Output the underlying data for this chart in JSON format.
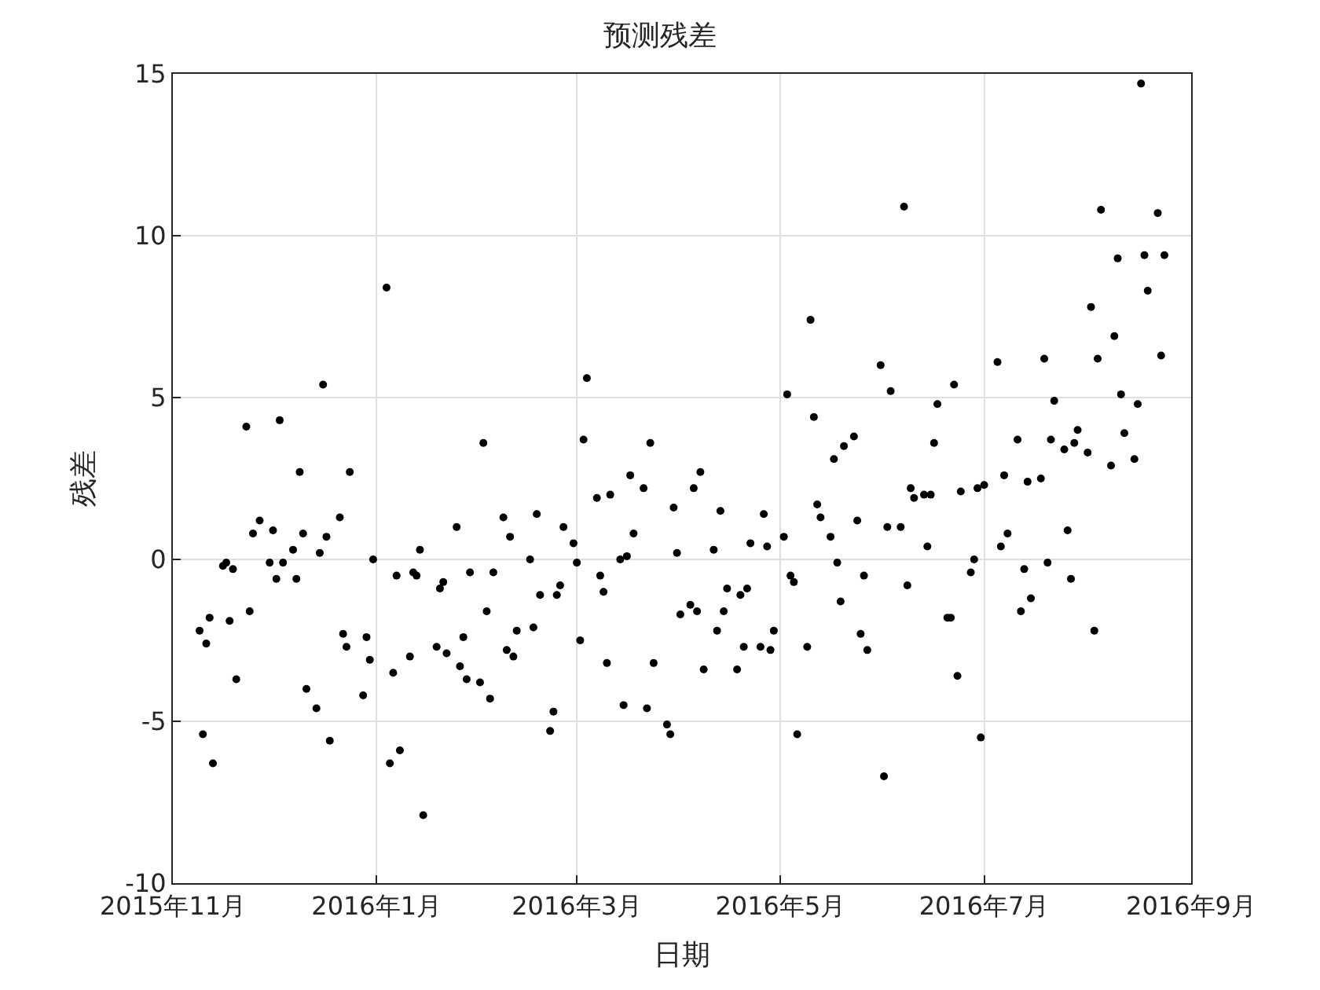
{
  "chart_data": {
    "type": "scatter",
    "title": "预测残差",
    "xlabel": "日期",
    "ylabel": "残差",
    "x": [
      "2015-11-09",
      "2015-11-10",
      "2015-11-11",
      "2015-11-12",
      "2015-11-13",
      "2015-11-16",
      "2015-11-17",
      "2015-11-18",
      "2015-11-19",
      "2015-11-20",
      "2015-11-23",
      "2015-11-24",
      "2015-11-25",
      "2015-11-27",
      "2015-11-30",
      "2015-12-01",
      "2015-12-02",
      "2015-12-03",
      "2015-12-04",
      "2015-12-07",
      "2015-12-08",
      "2015-12-09",
      "2015-12-10",
      "2015-12-11",
      "2015-12-14",
      "2015-12-15",
      "2015-12-16",
      "2015-12-17",
      "2015-12-18",
      "2015-12-21",
      "2015-12-22",
      "2015-12-23",
      "2015-12-24",
      "2015-12-28",
      "2015-12-29",
      "2015-12-30",
      "2015-12-31",
      "2016-01-04",
      "2016-01-05",
      "2016-01-06",
      "2016-01-07",
      "2016-01-08",
      "2016-01-11",
      "2016-01-12",
      "2016-01-13",
      "2016-01-14",
      "2016-01-15",
      "2016-01-19",
      "2016-01-20",
      "2016-01-21",
      "2016-01-22",
      "2016-01-25",
      "2016-01-26",
      "2016-01-27",
      "2016-01-28",
      "2016-01-29",
      "2016-02-01",
      "2016-02-02",
      "2016-02-03",
      "2016-02-04",
      "2016-02-05",
      "2016-02-08",
      "2016-02-09",
      "2016-02-10",
      "2016-02-11",
      "2016-02-12",
      "2016-02-16",
      "2016-02-17",
      "2016-02-18",
      "2016-02-19",
      "2016-02-22",
      "2016-02-23",
      "2016-02-24",
      "2016-02-25",
      "2016-02-26",
      "2016-02-29",
      "2016-03-01",
      "2016-03-02",
      "2016-03-03",
      "2016-03-04",
      "2016-03-07",
      "2016-03-08",
      "2016-03-09",
      "2016-03-10",
      "2016-03-11",
      "2016-03-14",
      "2016-03-15",
      "2016-03-16",
      "2016-03-17",
      "2016-03-18",
      "2016-03-21",
      "2016-03-22",
      "2016-03-23",
      "2016-03-24",
      "2016-03-28",
      "2016-03-29",
      "2016-03-30",
      "2016-03-31",
      "2016-04-01",
      "2016-04-04",
      "2016-04-05",
      "2016-04-06",
      "2016-04-07",
      "2016-04-08",
      "2016-04-11",
      "2016-04-12",
      "2016-04-13",
      "2016-04-14",
      "2016-04-15",
      "2016-04-18",
      "2016-04-19",
      "2016-04-20",
      "2016-04-21",
      "2016-04-22",
      "2016-04-25",
      "2016-04-26",
      "2016-04-27",
      "2016-04-28",
      "2016-04-29",
      "2016-05-02",
      "2016-05-03",
      "2016-05-04",
      "2016-05-05",
      "2016-05-06",
      "2016-05-09",
      "2016-05-10",
      "2016-05-11",
      "2016-05-12",
      "2016-05-13",
      "2016-05-16",
      "2016-05-17",
      "2016-05-18",
      "2016-05-19",
      "2016-05-20",
      "2016-05-23",
      "2016-05-24",
      "2016-05-25",
      "2016-05-26",
      "2016-05-27",
      "2016-05-31",
      "2016-06-01",
      "2016-06-02",
      "2016-06-03",
      "2016-06-06",
      "2016-06-07",
      "2016-06-08",
      "2016-06-09",
      "2016-06-10",
      "2016-06-13",
      "2016-06-14",
      "2016-06-15",
      "2016-06-16",
      "2016-06-17",
      "2016-06-20",
      "2016-06-21",
      "2016-06-22",
      "2016-06-23",
      "2016-06-24",
      "2016-06-27",
      "2016-06-28",
      "2016-06-29",
      "2016-06-30",
      "2016-07-01",
      "2016-07-05",
      "2016-07-06",
      "2016-07-07",
      "2016-07-08",
      "2016-07-11",
      "2016-07-12",
      "2016-07-13",
      "2016-07-14",
      "2016-07-15",
      "2016-07-18",
      "2016-07-19",
      "2016-07-20",
      "2016-07-21",
      "2016-07-22",
      "2016-07-25",
      "2016-07-26",
      "2016-07-27",
      "2016-07-28",
      "2016-07-29",
      "2016-08-01",
      "2016-08-02",
      "2016-08-03",
      "2016-08-04",
      "2016-08-05",
      "2016-08-08",
      "2016-08-09",
      "2016-08-10",
      "2016-08-11",
      "2016-08-12",
      "2016-08-15",
      "2016-08-16",
      "2016-08-17",
      "2016-08-18",
      "2016-08-19",
      "2016-08-22",
      "2016-08-23",
      "2016-08-24"
    ],
    "series": [
      {
        "color": "#000000",
        "values": [
          -2.2,
          -5.4,
          -2.6,
          -1.8,
          -6.3,
          -0.2,
          -0.1,
          -1.9,
          -0.3,
          -3.7,
          4.1,
          -1.6,
          0.8,
          1.2,
          -0.1,
          0.9,
          -0.6,
          4.3,
          -0.1,
          0.3,
          -0.6,
          2.7,
          0.8,
          -4.0,
          -4.6,
          0.2,
          5.4,
          0.7,
          -5.6,
          1.3,
          -2.3,
          -2.7,
          2.7,
          -4.2,
          -2.4,
          -3.1,
          0.0,
          8.4,
          -6.3,
          -3.5,
          -0.5,
          -5.9,
          -3.0,
          -0.4,
          -0.5,
          0.3,
          -7.9,
          -2.7,
          -0.9,
          -0.7,
          -2.9,
          1.0,
          -3.3,
          -2.4,
          -3.7,
          -0.4,
          -3.8,
          3.6,
          -1.6,
          -4.3,
          -0.4,
          1.3,
          -2.8,
          0.7,
          -3.0,
          -2.2,
          0.0,
          -2.1,
          1.4,
          -1.1,
          -5.3,
          -4.7,
          -1.1,
          -0.8,
          1.0,
          0.5,
          -0.1,
          -2.5,
          3.7,
          5.6,
          1.9,
          -0.5,
          -1.0,
          -3.2,
          2.0,
          0.0,
          -4.5,
          0.1,
          2.6,
          0.8,
          2.2,
          -4.6,
          3.6,
          -3.2,
          -5.1,
          -5.4,
          1.6,
          0.2,
          -1.7,
          -1.4,
          2.2,
          -1.6,
          2.7,
          -3.4,
          0.3,
          -2.2,
          1.5,
          -1.6,
          -0.9,
          -3.4,
          -1.1,
          -2.7,
          -0.9,
          0.5,
          -2.7,
          1.4,
          0.4,
          -2.8,
          -2.2,
          0.7,
          5.1,
          -0.5,
          -0.7,
          -5.4,
          -2.7,
          7.4,
          4.4,
          1.7,
          1.3,
          0.7,
          3.1,
          -0.1,
          -1.3,
          3.5,
          3.8,
          1.2,
          -2.3,
          -0.5,
          -2.8,
          6.0,
          -6.7,
          1.0,
          5.2,
          1.0,
          10.9,
          -0.8,
          2.2,
          1.9,
          2.0,
          0.4,
          2.0,
          3.6,
          4.8,
          -1.8,
          -1.8,
          5.4,
          -3.6,
          2.1,
          -0.4,
          0.0,
          2.2,
          -5.5,
          2.3,
          6.1,
          0.4,
          2.6,
          0.8,
          3.7,
          -1.6,
          -0.3,
          2.4,
          -1.2,
          2.5,
          6.2,
          -0.1,
          3.7,
          4.9,
          3.4,
          0.9,
          -0.6,
          3.6,
          4.0,
          3.3,
          7.8,
          -2.2,
          6.2,
          10.8,
          2.9,
          6.9,
          9.3,
          5.1,
          3.9,
          3.1,
          4.8,
          14.7,
          9.4,
          8.3,
          10.7,
          6.3,
          9.4
        ]
      }
    ],
    "xlim": [
      "2015-11-01",
      "2016-09-01"
    ],
    "xticks": [
      {
        "value": "2015-11-01",
        "label": "2015年11月"
      },
      {
        "value": "2016-01-01",
        "label": "2016年1月"
      },
      {
        "value": "2016-03-01",
        "label": "2016年3月"
      },
      {
        "value": "2016-05-01",
        "label": "2016年5月"
      },
      {
        "value": "2016-07-01",
        "label": "2016年7月"
      },
      {
        "value": "2016-09-01",
        "label": "2016年9月"
      }
    ],
    "ylim": [
      -10,
      15
    ],
    "yticks": [
      -10,
      -5,
      0,
      5,
      10,
      15
    ],
    "grid": true,
    "marker": "circle"
  }
}
